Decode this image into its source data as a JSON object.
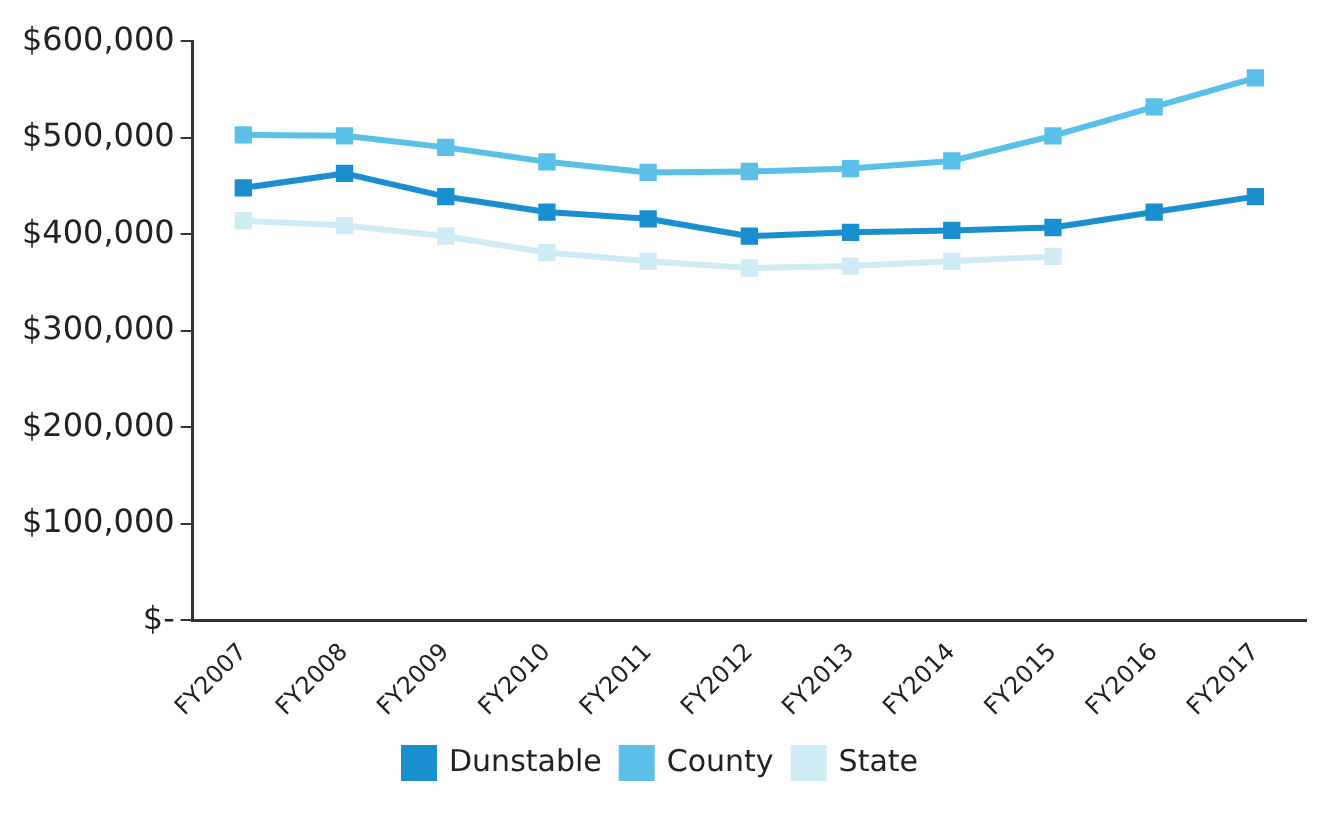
{
  "chart_data": {
    "type": "line",
    "categories": [
      "FY2007",
      "FY2008",
      "FY2009",
      "FY2010",
      "FY2011",
      "FY2012",
      "FY2013",
      "FY2014",
      "FY2015",
      "FY2016",
      "FY2017"
    ],
    "series": [
      {
        "name": "Dunstable",
        "color": "#1a8fd0",
        "values": [
          448000,
          463000,
          439000,
          423000,
          416000,
          398000,
          402000,
          404000,
          407000,
          423000,
          439000
        ]
      },
      {
        "name": "County",
        "color": "#5bc0e8",
        "values": [
          503000,
          502000,
          490000,
          475000,
          464000,
          465000,
          468000,
          476000,
          502000,
          532000,
          562000
        ]
      },
      {
        "name": "State",
        "color": "#cfecf6",
        "values": [
          414000,
          409000,
          398000,
          381000,
          372000,
          365000,
          367000,
          372000,
          377000,
          null,
          null
        ]
      }
    ],
    "ylim": [
      0,
      600000
    ],
    "yticks": [
      {
        "value": 0,
        "label": "$-"
      },
      {
        "value": 100000,
        "label": "$100,000"
      },
      {
        "value": 200000,
        "label": "$200,000"
      },
      {
        "value": 300000,
        "label": "$300,000"
      },
      {
        "value": 400000,
        "label": "$400,000"
      },
      {
        "value": 500000,
        "label": "$500,000"
      },
      {
        "value": 600000,
        "label": "$600,000"
      }
    ],
    "grid": false,
    "legend": "bottom",
    "marker": "square",
    "line_style": "solid"
  }
}
